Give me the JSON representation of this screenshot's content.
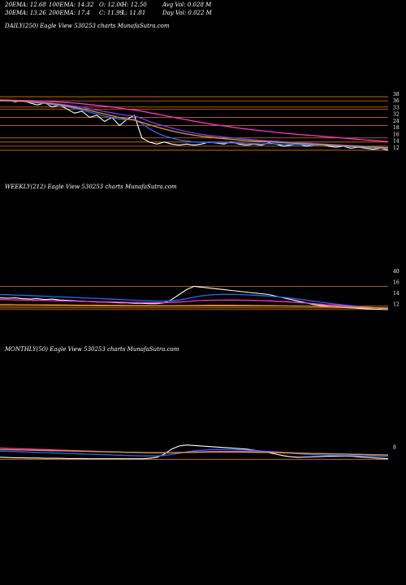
{
  "header": {
    "row1": [
      "20EMA: 12.68",
      "100EMA: 14.32",
      "O: 12.00",
      "H: 12.50",
      "Avg Vol: 0.028  M"
    ],
    "row2": [
      "30EMA: 13.26",
      "200EMA: 17.4",
      "C: 11.99",
      "L: 11.81",
      "Day Vol: 0.022  M"
    ]
  },
  "colors": {
    "background": "#000000",
    "price": "#ffffff",
    "ema_short": "#1e6bff",
    "ema_mid": "#7a3cff",
    "ema_long": "#ff33cc",
    "ema_slow": "#d89a3a",
    "level": "#e07a10"
  },
  "chart_data": [
    {
      "type": "line",
      "title": "DAILY(250) Eagle  View  530253 charts MunafaSutra.com",
      "y_ticks": [
        "38",
        "36",
        "33",
        "32",
        "24",
        "18",
        "16",
        "14",
        "12"
      ],
      "level_lines": [
        38,
        36,
        33,
        32,
        28,
        24,
        18,
        16,
        14,
        12
      ],
      "ylim": [
        10,
        40
      ],
      "series": [
        {
          "key": "price",
          "values": [
            36,
            36.5,
            35.5,
            36,
            35,
            34,
            35,
            33,
            34,
            32,
            30,
            31,
            28,
            29,
            26,
            28,
            24,
            27,
            29,
            18,
            16,
            15,
            16,
            15,
            14.5,
            15,
            14.5,
            15,
            16,
            15.5,
            15,
            16,
            15,
            14.5,
            15,
            14.5,
            15.5,
            15,
            14,
            14.5,
            15,
            14,
            14.5,
            15,
            14,
            13.5,
            14,
            13,
            13.5,
            13,
            12.5,
            13,
            12
          ]
        },
        {
          "key": "ema_short",
          "values": [
            36,
            36,
            35.8,
            35.7,
            35.3,
            35,
            34.7,
            34.2,
            33.8,
            33.2,
            32.3,
            31.5,
            30.5,
            29.6,
            28.6,
            28,
            27,
            26.8,
            27,
            25,
            22.5,
            20.5,
            19,
            18,
            17,
            16.5,
            16,
            15.8,
            15.8,
            15.7,
            15.6,
            15.6,
            15.5,
            15.3,
            15.2,
            15.1,
            15.2,
            15.1,
            14.9,
            14.8,
            14.8,
            14.6,
            14.5,
            14.6,
            14.4,
            14.2,
            14.1,
            13.8,
            13.7,
            13.5,
            13.2,
            13.1,
            12.7
          ]
        },
        {
          "key": "ema_mid",
          "values": [
            36,
            36,
            35.9,
            35.8,
            35.6,
            35.4,
            35.1,
            34.8,
            34.4,
            34,
            33.4,
            32.9,
            32.2,
            31.5,
            30.8,
            30.2,
            29.5,
            29,
            28.7,
            27.5,
            26,
            24.8,
            23.8,
            22.8,
            21.9,
            21,
            20.3,
            19.7,
            19.2,
            18.8,
            18.4,
            18,
            17.7,
            17.4,
            17.1,
            16.8,
            16.6,
            16.4,
            16.1,
            15.9,
            15.7,
            15.5,
            15.3,
            15.1,
            14.9,
            14.7,
            14.5,
            14.3,
            14.1,
            13.9,
            13.7,
            13.5,
            13.3
          ]
        },
        {
          "key": "ema_long",
          "values": [
            36.5,
            36.4,
            36.3,
            36.2,
            36.1,
            36,
            35.8,
            35.6,
            35.4,
            35.2,
            34.9,
            34.6,
            34.2,
            33.8,
            33.4,
            33,
            32.5,
            32,
            31.6,
            31,
            30.3,
            29.6,
            28.9,
            28.2,
            27.5,
            26.8,
            26.1,
            25.5,
            24.9,
            24.3,
            23.8,
            23.3,
            22.8,
            22.3,
            21.9,
            21.5,
            21.1,
            20.7,
            20.3,
            20,
            19.7,
            19.4,
            19.1,
            18.8,
            18.5,
            18.2,
            17.9,
            17.6,
            17.3,
            17,
            16.8,
            16.5,
            16.2
          ]
        },
        {
          "key": "ema_slow",
          "values": [
            36.2,
            36.1,
            36,
            35.8,
            35.6,
            35.3,
            35,
            34.6,
            34.1,
            33.5,
            32.8,
            32.1,
            31.3,
            30.5,
            29.6,
            28.8,
            27.9,
            27.2,
            26.6,
            25.6,
            24.4,
            23.3,
            22.3,
            21.4,
            20.6,
            19.9,
            19.3,
            18.8,
            18.4,
            18,
            17.6,
            17.3,
            17,
            16.7,
            16.5,
            16.3,
            16.1,
            15.9,
            15.7,
            15.5,
            15.3,
            15.1,
            14.9,
            14.8,
            14.6,
            14.4,
            14.2,
            14.1,
            13.9,
            13.7,
            13.6,
            13.4,
            13.2
          ]
        }
      ]
    },
    {
      "type": "line",
      "title": "WEEKLY(212) Eagle  View  530253 charts MunafaSutra.com",
      "y_ticks": [
        "40",
        "16",
        "14",
        "12"
      ],
      "level_lines": [
        40,
        16,
        14,
        12
      ],
      "ylim": [
        5,
        60
      ],
      "series": [
        {
          "key": "price",
          "values": [
            26,
            25.5,
            26,
            25,
            24.5,
            25,
            24,
            24.5,
            23.5,
            23,
            22.5,
            22,
            21.5,
            21,
            21,
            20.5,
            20,
            20,
            19.5,
            19.5,
            19,
            19,
            20,
            24,
            30,
            36,
            40,
            39,
            38,
            37,
            36,
            35,
            34,
            33,
            32,
            31,
            30,
            28,
            26,
            24,
            22,
            20,
            18,
            17,
            16,
            15,
            14.5,
            14,
            13.5,
            13,
            12.5,
            12.3,
            12
          ]
        },
        {
          "key": "ema_short",
          "values": [
            30,
            29.8,
            29.5,
            29.2,
            28.8,
            28.4,
            28,
            27.6,
            27.2,
            26.8,
            26.4,
            26,
            25.6,
            25.2,
            24.8,
            24.4,
            24,
            23.6,
            23.2,
            22.8,
            22.4,
            22,
            22,
            22.5,
            23.5,
            25,
            27,
            28.5,
            29.5,
            30,
            30.2,
            30.2,
            30,
            29.7,
            29.3,
            28.8,
            28.2,
            27.5,
            26.6,
            25.6,
            24.5,
            23.3,
            22,
            20.8,
            19.6,
            18.5,
            17.5,
            16.6,
            15.7,
            14.9,
            14.1,
            13.4,
            12.8
          ]
        },
        {
          "key": "ema_long",
          "values": [
            24,
            23.8,
            23.6,
            23.4,
            23.2,
            23,
            22.8,
            22.6,
            22.4,
            22.2,
            22,
            21.8,
            21.6,
            21.4,
            21.2,
            21,
            20.8,
            20.6,
            20.4,
            20.3,
            20.2,
            20.1,
            20.2,
            20.5,
            21,
            21.6,
            22.3,
            22.8,
            23.1,
            23.3,
            23.4,
            23.4,
            23.3,
            23.2,
            23,
            22.7,
            22.4,
            22,
            21.5,
            21,
            20.4,
            19.8,
            19.1,
            18.4,
            17.7,
            17,
            16.4,
            15.8,
            15.2,
            14.7,
            14.2,
            13.7,
            13.3
          ]
        },
        {
          "key": "ema_slow",
          "values": [
            18,
            18,
            17.9,
            17.8,
            17.8,
            17.7,
            17.6,
            17.5,
            17.5,
            17.4,
            17.3,
            17.2,
            17.2,
            17.1,
            17,
            16.9,
            16.9,
            16.8,
            16.7,
            16.6,
            16.6,
            16.5,
            16.5,
            16.5,
            16.6,
            16.7,
            16.8,
            16.9,
            17,
            17,
            17,
            17,
            16.9,
            16.9,
            16.8,
            16.7,
            16.6,
            16.5,
            16.4,
            16.2,
            16.1,
            15.9,
            15.7,
            15.5,
            15.3,
            15.1,
            14.9,
            14.7,
            14.5,
            14.3,
            14.1,
            13.9,
            13.7
          ]
        }
      ]
    },
    {
      "type": "line",
      "title": "MONTHLY(50) Eagle  View  530253 charts MunafaSutra.com",
      "y_ticks": [
        "8"
      ],
      "level_lines": [
        14
      ],
      "ylim": [
        5,
        70
      ],
      "series": [
        {
          "key": "price",
          "values": [
            18,
            17.5,
            17,
            17,
            16.5,
            16.5,
            16,
            16,
            16,
            15.5,
            15.5,
            15.5,
            15,
            15,
            15,
            15,
            15,
            15,
            15,
            15,
            16,
            18,
            24,
            34,
            40,
            42,
            41,
            40,
            39,
            38,
            37,
            36,
            35,
            34,
            32,
            30,
            27,
            24,
            21,
            19,
            18,
            18.5,
            19,
            19.5,
            20,
            20,
            20.5,
            20,
            19,
            18,
            17,
            16,
            15
          ]
        },
        {
          "key": "ema_short",
          "values": [
            30,
            29.5,
            29,
            28.5,
            28,
            27.5,
            27,
            26.5,
            26,
            25.5,
            25,
            24.5,
            24,
            23.5,
            23,
            22.5,
            22,
            21.5,
            21,
            20.7,
            20.5,
            20.6,
            21.5,
            23.5,
            26,
            28.5,
            30.5,
            31.8,
            32.6,
            33,
            33,
            32.8,
            32.4,
            31.9,
            31.2,
            30.4,
            29.5,
            28.4,
            27.2,
            26,
            24.8,
            23.8,
            23,
            22.4,
            22,
            21.7,
            21.5,
            21.3,
            21,
            20.7,
            20.3,
            19.9,
            19.5
          ]
        },
        {
          "key": "ema_long",
          "values": [
            36,
            35.5,
            35,
            34.5,
            34,
            33.5,
            33,
            32.5,
            32,
            31.5,
            31,
            30.5,
            30,
            29.5,
            29,
            28.6,
            28.2,
            27.8,
            27.4,
            27,
            26.7,
            26.5,
            26.5,
            26.8,
            27.3,
            27.9,
            28.4,
            28.8,
            29.1,
            29.3,
            29.4,
            29.4,
            29.3,
            29.1,
            28.9,
            28.6,
            28.2,
            27.8,
            27.3,
            26.8,
            26.3,
            25.8,
            25.4,
            25,
            24.6,
            24.3,
            24,
            23.7,
            23.4,
            23.1,
            22.8,
            22.5,
            22.2
          ]
        },
        {
          "key": "ema_slow",
          "values": [
            33,
            32.7,
            32.4,
            32.1,
            31.8,
            31.5,
            31.2,
            30.9,
            30.6,
            30.3,
            30,
            29.7,
            29.4,
            29.1,
            28.8,
            28.5,
            28.2,
            27.9,
            27.6,
            27.3,
            27.1,
            26.9,
            26.9,
            27,
            27.2,
            27.5,
            27.7,
            27.9,
            28,
            28.1,
            28.1,
            28.1,
            28,
            27.9,
            27.7,
            27.5,
            27.3,
            27,
            26.7,
            26.4,
            26.1,
            25.8,
            25.5,
            25.2,
            24.9,
            24.6,
            24.3,
            24,
            23.7,
            23.4,
            23.1,
            22.8,
            22.5
          ]
        }
      ]
    }
  ]
}
